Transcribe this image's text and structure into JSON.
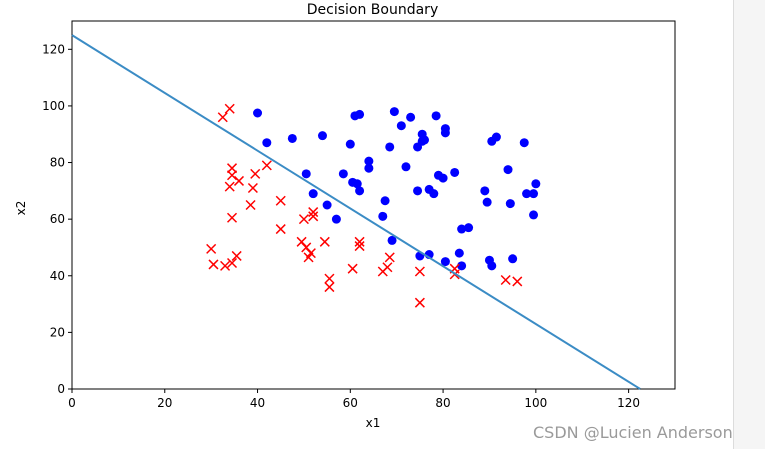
{
  "chart_data": {
    "type": "scatter",
    "title": "Decision Boundary",
    "xlabel": "x1",
    "ylabel": "x2",
    "xlim": [
      0,
      130
    ],
    "ylim": [
      0,
      130
    ],
    "xticks": [
      0,
      20,
      40,
      60,
      80,
      100,
      120
    ],
    "yticks": [
      0,
      20,
      40,
      60,
      80,
      100,
      120
    ],
    "grid": false,
    "series": [
      {
        "marker": "circle",
        "color": "#0000ff",
        "points": [
          [
            40,
            97.5
          ],
          [
            42,
            87
          ],
          [
            47.5,
            88.5
          ],
          [
            54,
            89.5
          ],
          [
            62,
            97
          ],
          [
            61,
            96.5
          ],
          [
            69.5,
            98
          ],
          [
            73,
            96
          ],
          [
            78.5,
            96.5
          ],
          [
            71,
            93
          ],
          [
            80.5,
            92
          ],
          [
            80.5,
            90.5
          ],
          [
            75.5,
            90
          ],
          [
            76,
            88
          ],
          [
            74.5,
            85.5
          ],
          [
            75.5,
            87.5
          ],
          [
            68.5,
            85.5
          ],
          [
            60,
            86.5
          ],
          [
            91.5,
            89
          ],
          [
            90.5,
            87.5
          ],
          [
            97.5,
            87
          ],
          [
            64,
            80.5
          ],
          [
            64,
            78
          ],
          [
            72,
            78.5
          ],
          [
            82.5,
            76.5
          ],
          [
            94,
            77.5
          ],
          [
            58.5,
            76
          ],
          [
            60.5,
            73
          ],
          [
            61.5,
            72.5
          ],
          [
            79,
            75.5
          ],
          [
            80,
            74.5
          ],
          [
            100,
            72.5
          ],
          [
            77,
            70.5
          ],
          [
            78,
            69
          ],
          [
            74.5,
            70
          ],
          [
            62,
            70
          ],
          [
            52,
            69
          ],
          [
            89,
            70
          ],
          [
            98,
            69
          ],
          [
            99.5,
            69
          ],
          [
            89.5,
            66
          ],
          [
            94.5,
            65.5
          ],
          [
            55,
            65
          ],
          [
            67.5,
            66.5
          ],
          [
            67,
            61
          ],
          [
            57,
            60
          ],
          [
            99.5,
            61.5
          ],
          [
            50.5,
            76
          ],
          [
            69,
            52.5
          ],
          [
            75,
            47
          ],
          [
            77,
            47.5
          ],
          [
            83.5,
            48
          ],
          [
            84,
            56.5
          ],
          [
            85.5,
            57
          ],
          [
            80.5,
            45
          ],
          [
            84,
            43.5
          ],
          [
            90,
            45.5
          ],
          [
            90.5,
            43.5
          ],
          [
            95,
            46
          ]
        ]
      },
      {
        "marker": "x",
        "color": "#ff0000",
        "points": [
          [
            32.5,
            96
          ],
          [
            34,
            99
          ],
          [
            34.5,
            78
          ],
          [
            34.5,
            75.5
          ],
          [
            36,
            73.5
          ],
          [
            34,
            71.5
          ],
          [
            39.5,
            76
          ],
          [
            42,
            79
          ],
          [
            39,
            71
          ],
          [
            38.5,
            65
          ],
          [
            45,
            66.5
          ],
          [
            34.5,
            60.5
          ],
          [
            52,
            62.5
          ],
          [
            52,
            61
          ],
          [
            50,
            60
          ],
          [
            45,
            56.5
          ],
          [
            30,
            49.5
          ],
          [
            30.5,
            44
          ],
          [
            33,
            43.5
          ],
          [
            34.5,
            44.5
          ],
          [
            35.5,
            47
          ],
          [
            49.5,
            52
          ],
          [
            50.5,
            50
          ],
          [
            51.5,
            48
          ],
          [
            51,
            46.5
          ],
          [
            54.5,
            52
          ],
          [
            62,
            52
          ],
          [
            62,
            50.5
          ],
          [
            60.5,
            42.5
          ],
          [
            67,
            41.5
          ],
          [
            68,
            43
          ],
          [
            68.5,
            46.5
          ],
          [
            55.5,
            39
          ],
          [
            55.5,
            36
          ],
          [
            75,
            41.5
          ],
          [
            75,
            30.5
          ],
          [
            82.5,
            42.5
          ],
          [
            82.5,
            40.5
          ],
          [
            93.5,
            38.5
          ],
          [
            96,
            38
          ]
        ]
      }
    ],
    "boundary_line": {
      "color": "#3b8cc5",
      "x": [
        0,
        122.5
      ],
      "y": [
        125,
        0
      ]
    }
  },
  "watermark": "CSDN @Lucien Anderson"
}
